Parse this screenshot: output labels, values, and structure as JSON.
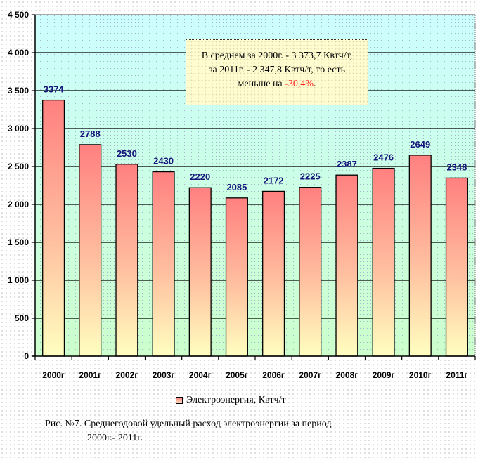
{
  "chart_data": {
    "type": "bar",
    "categories": [
      "2000г",
      "2001г",
      "2002г",
      "2003г",
      "2004г",
      "2005г",
      "2006г",
      "2007г",
      "2008г",
      "2009г",
      "2010г",
      "2011г"
    ],
    "series": [
      {
        "name": "Электроэнергия, Квтч/т",
        "values": [
          3374,
          2788,
          2530,
          2430,
          2220,
          2085,
          2172,
          2225,
          2387,
          2476,
          2649,
          2348
        ]
      }
    ],
    "data_labels": [
      "3374",
      "2788",
      "2530",
      "2430",
      "2220",
      "2085",
      "2172",
      "2225",
      "2387",
      "2476",
      "2649",
      "2348"
    ],
    "ylim": [
      0,
      4500
    ],
    "yticks": [
      0,
      500,
      1000,
      1500,
      2000,
      2500,
      3000,
      3500,
      4000,
      4500
    ],
    "ytick_labels": [
      "0",
      "500",
      "1 000",
      "1 500",
      "2 000",
      "2 500",
      "3 000",
      "3 500",
      "4 000",
      "4 500"
    ],
    "grid": true,
    "legend_position": "bottom",
    "xlabel": "",
    "ylabel": "",
    "colors": {
      "bar_top": "#ff8080",
      "bar_bottom": "#ffffc0",
      "plot_bg_top": "#ccffff",
      "plot_bg_bottom": "#ccffcc",
      "data_label": "#14147a"
    }
  },
  "annotation": {
    "line1": "В среднем за 2000г. - 3 373,7 Квтч/т,",
    "line2": "за 2011г. - 2 347,8 Квтч/т, то есть",
    "line3_prefix": "меньше на ",
    "line3_value": "-30,4%",
    "line3_suffix": "."
  },
  "legend": {
    "label": "Электроэнергия, Квтч/т"
  },
  "caption": {
    "line1": "Рис. №7. Среднегодовой удельный расход электроэнергии за период",
    "line2": "2000г.- 2011г."
  }
}
